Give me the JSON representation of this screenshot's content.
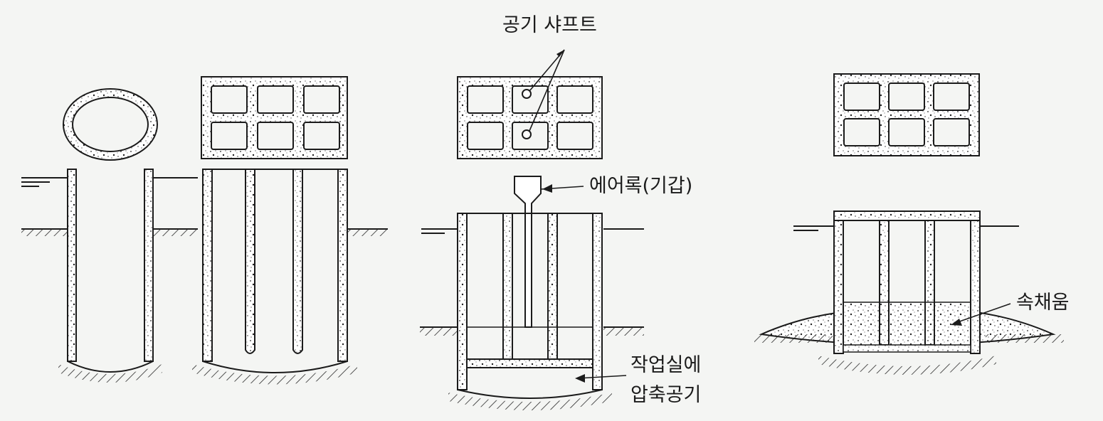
{
  "labels": {
    "air_shaft": "공기 샤프트",
    "air_lock": "에어록(기갑)",
    "work_chamber_line1": "작업실에",
    "work_chamber_line2": "압축공기",
    "infill": "속채움"
  },
  "colors": {
    "ink": "#1b1b1b",
    "paper": "#f4f5f3",
    "concrete": "#ffffff",
    "hatch": "#2a2a2a"
  }
}
